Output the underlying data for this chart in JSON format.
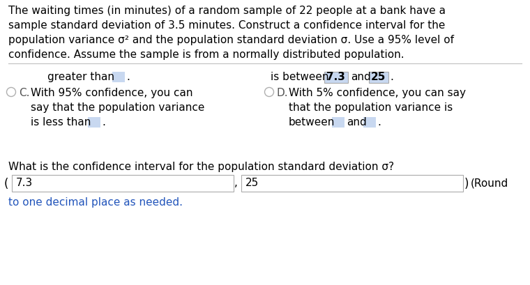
{
  "bg_color": "#ffffff",
  "text_color": "#000000",
  "blue_link_color": "#2255bb",
  "highlight_box_color": "#c8d8f0",
  "para_lines": [
    "The waiting times (in minutes) of a random sample of 22 people at a bank have a",
    "sample standard deviation of 3.5 minutes. Construct a confidence interval for the",
    "population variance σ² and the population standard deviation σ. Use a 95% level of",
    "confidence. Assume the sample is from a normally distributed population."
  ],
  "option_B_prefix": "is between",
  "option_B_val1": "7.3",
  "option_B_val2": "25",
  "option_C_text1": "With 95% confidence, you can",
  "option_C_text2": "say that the population variance",
  "option_C_text3": "is less than",
  "option_D_text1": "With 5% confidence, you can say",
  "option_D_text2": "that the population variance is",
  "option_D_text3": "between",
  "option_D_text4": "and",
  "greater_than_label": "greater than",
  "question": "What is the confidence interval for the population standard deviation σ?",
  "input_val1": "7.3",
  "input_val2": "25",
  "round_note": "(Round",
  "round_note2": "to one decimal place as needed.",
  "fs": 11.0
}
